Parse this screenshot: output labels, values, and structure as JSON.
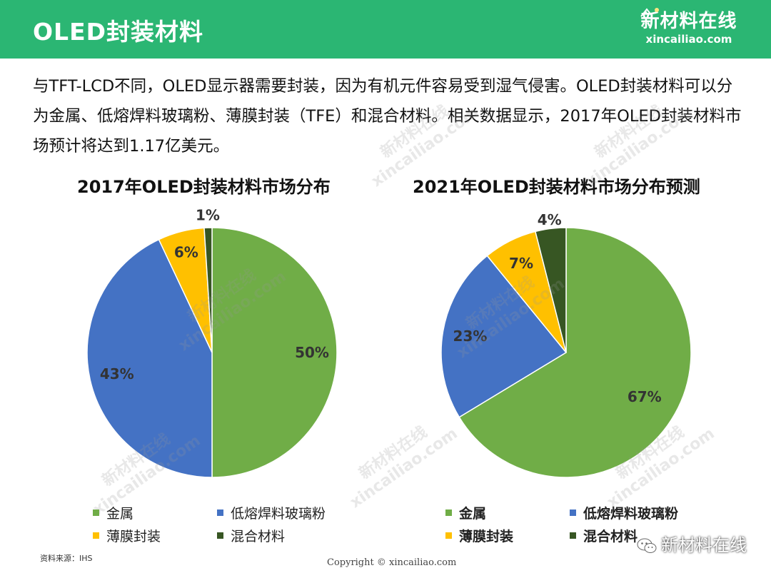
{
  "header": {
    "title": "OLED封装材料",
    "brand_cn": "新材料在线",
    "brand_en": "xincailiao.com"
  },
  "intro": {
    "text": "与TFT-LCD不同，OLED显示器需要封装，因为有机元件容易受到湿气侵害。OLED封装材料可以分为金属、低熔焊料玻璃粉、薄膜封装（TFE）和混合材料。相关数据显示，2017年OLED封装材料市场预计将达到1.17亿美元。"
  },
  "colors": {
    "header": "#2bb673",
    "metal": "#70ad47",
    "glass_frit": "#4472c4",
    "tfe": "#ffc000",
    "hybrid": "#375623"
  },
  "chart_data": [
    {
      "type": "pie",
      "title": "2017年OLED封装材料市场分布",
      "slices": [
        {
          "label": "金属",
          "value": 50,
          "display": "50%"
        },
        {
          "label": "低熔焊料玻璃粉",
          "value": 43,
          "display": "43%"
        },
        {
          "label": "薄膜封装",
          "value": 6,
          "display": "6%"
        },
        {
          "label": "混合材料",
          "value": 1,
          "display": "1%"
        }
      ],
      "legend": [
        "金属",
        "低熔焊料玻璃粉",
        "薄膜封装",
        "混合材料"
      ],
      "legend_position": "bottom"
    },
    {
      "type": "pie",
      "title": "2021年OLED封装材料市场分布预测",
      "slices": [
        {
          "label": "金属",
          "value": 67,
          "display": "67%"
        },
        {
          "label": "低熔焊料玻璃粉",
          "value": 23,
          "display": "23%"
        },
        {
          "label": "薄膜封装",
          "value": 7,
          "display": "7%"
        },
        {
          "label": "混合材料",
          "value": 4,
          "display": "4%"
        }
      ],
      "legend": [
        "金属",
        "低熔焊料玻璃粉",
        "薄膜封装",
        "混合材料"
      ],
      "legend_position": "bottom"
    }
  ],
  "footer": {
    "source": "资料来源：IHS",
    "copyright": "Copyright © xincailiao.com",
    "wechat_account": "新材料在线"
  },
  "watermark": {
    "cn": "新材料在线",
    "en": "xincailiao.com"
  }
}
